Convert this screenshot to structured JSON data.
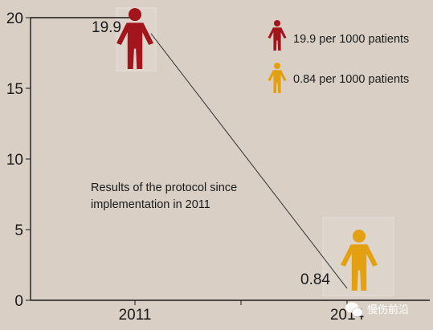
{
  "chart_data": {
    "type": "line",
    "x": [
      "2011",
      "2014"
    ],
    "series": [
      {
        "values": [
          19.9,
          0.84
        ]
      }
    ],
    "ylim": [
      0,
      20
    ],
    "yticks": [
      0,
      5,
      10,
      15,
      20
    ],
    "grid": false,
    "legend_placement": "top-right",
    "data_labels": [
      "19.9",
      "0.84"
    ],
    "legend": [
      {
        "label": "19.9 per 1000 patients",
        "icon": "person-icon",
        "color": "#a3151c"
      },
      {
        "label": "0.84 per 1000 patients",
        "icon": "person-icon",
        "color": "#e3a112"
      }
    ],
    "annotation": [
      "Results of the protocol since",
      "implementation in 2011"
    ],
    "marker_icons": [
      {
        "icon": "person-icon",
        "color": "#a3151c"
      },
      {
        "icon": "person-icon",
        "color": "#e3a112"
      }
    ]
  },
  "colors": {
    "background": "#d9cfc5",
    "axis": "#1a1a1a",
    "line": "#333333",
    "red": "#a3151c",
    "gold": "#e3a112"
  },
  "watermark": {
    "text": "慢伤前沿",
    "icon": "wechat-icon"
  }
}
